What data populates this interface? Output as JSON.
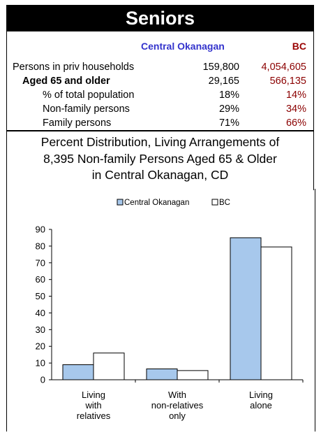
{
  "header": {
    "title": "Seniors"
  },
  "stats": {
    "columns": [
      "Central Okanagan",
      "BC"
    ],
    "rows": [
      {
        "label": "Persons in priv households",
        "central": "159,800",
        "bc": "4,054,605",
        "bold": false,
        "indent": 0
      },
      {
        "label": "Aged 65 and older",
        "central": "29,165",
        "bc": "566,135",
        "bold": true,
        "indent": 1
      },
      {
        "label": "% of total population",
        "central": "18%",
        "bc": "14%",
        "bold": false,
        "indent": 2
      },
      {
        "label": "Non-family persons",
        "central": "29%",
        "bc": "34%",
        "bold": false,
        "indent": 2
      },
      {
        "label": "Family persons",
        "central": "71%",
        "bc": "66%",
        "bold": false,
        "indent": 2
      }
    ]
  },
  "description": {
    "line1": "Percent Distribution, Living Arrangements of",
    "line2": "8,395 Non-family Persons Aged 65 & Older",
    "line3": "in Central Okanagan, CD"
  },
  "colors": {
    "central": "#a7c8ec",
    "bc": "#ffffff",
    "bc_text": "#8b0000",
    "central_text": "#3333cc"
  },
  "chart_data": {
    "type": "bar",
    "categories": [
      [
        "Living",
        "with",
        "relatives"
      ],
      [
        "With",
        "non-relatives",
        "only"
      ],
      [
        "Living",
        "alone"
      ]
    ],
    "series": [
      {
        "name": "Central Okanagan",
        "values": [
          9,
          6.5,
          85
        ],
        "color": "#a7c8ec"
      },
      {
        "name": "BC",
        "values": [
          16,
          5.5,
          79.5
        ],
        "color": "#ffffff"
      }
    ],
    "yticks": [
      0,
      10,
      20,
      30,
      40,
      50,
      60,
      70,
      80,
      90
    ],
    "ylim": [
      0,
      90
    ],
    "legend": "top",
    "grid": false
  }
}
